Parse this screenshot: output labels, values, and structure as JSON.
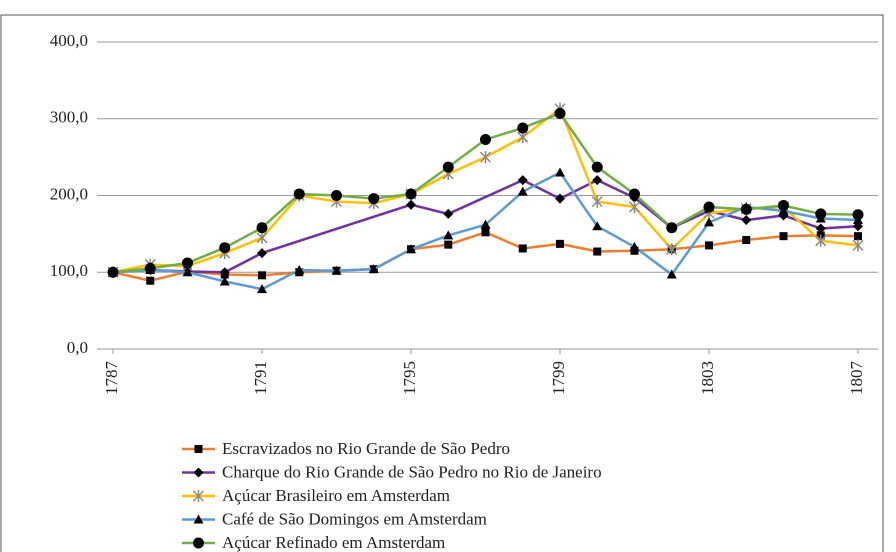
{
  "chart_data": {
    "type": "line",
    "xlim": [
      1787,
      1807
    ],
    "xticks": [
      1787,
      1791,
      1795,
      1799,
      1803,
      1807
    ],
    "ylim": [
      0,
      400
    ],
    "yticks": [
      {
        "value": 0,
        "label": "0,0"
      },
      {
        "value": 100,
        "label": "100,0"
      },
      {
        "value": 200,
        "label": "200,0"
      },
      {
        "value": 300,
        "label": "300,0"
      },
      {
        "value": 400,
        "label": "400,0"
      }
    ],
    "grid": true,
    "legend": "bottom",
    "series": [
      {
        "name": "Escravizados no Rio Grande de São Pedro",
        "color": "#ed7d31",
        "marker": "square",
        "x": [
          1787,
          1788,
          1789,
          1790,
          1791,
          1792,
          1793,
          1794,
          1795,
          1796,
          1797,
          1798,
          1799,
          1800,
          1801,
          1802,
          1803,
          1804,
          1805,
          1806,
          1807
        ],
        "values": [
          100,
          89,
          101,
          97,
          96,
          100,
          102,
          104,
          130,
          136,
          152,
          131,
          137,
          127,
          128,
          130,
          135,
          142,
          147,
          148,
          147
        ]
      },
      {
        "name": "Charque do Rio Grande de São Pedro no Rio de Janeiro",
        "color": "#7030a0",
        "marker": "diamond",
        "x": [
          1787,
          1788,
          1789,
          1790,
          1791,
          1795,
          1796,
          1798,
          1799,
          1800,
          1801,
          1802,
          1803,
          1804,
          1805,
          1806,
          1807
        ],
        "values": [
          100,
          103,
          101,
          100,
          125,
          188,
          176,
          220,
          196,
          220,
          197,
          158,
          180,
          168,
          174,
          157,
          160
        ]
      },
      {
        "name": "Açúcar Brasileiro em Amsterdam",
        "color": "#ffc000",
        "marker": "star",
        "x": [
          1787,
          1788,
          1789,
          1790,
          1791,
          1792,
          1793,
          1794,
          1795,
          1796,
          1797,
          1798,
          1799,
          1800,
          1801,
          1802,
          1803,
          1804,
          1805,
          1806,
          1807
        ],
        "values": [
          100,
          110,
          108,
          125,
          145,
          200,
          192,
          190,
          202,
          228,
          250,
          276,
          313,
          192,
          185,
          130,
          177,
          183,
          185,
          141,
          135
        ]
      },
      {
        "name": "Café de São Domingos em Amsterdam",
        "color": "#5b9bd5",
        "marker": "triangle",
        "x": [
          1787,
          1788,
          1789,
          1790,
          1791,
          1792,
          1793,
          1794,
          1795,
          1796,
          1797,
          1798,
          1799,
          1800,
          1801,
          1802,
          1803,
          1804,
          1805,
          1806,
          1807
        ],
        "values": [
          100,
          103,
          100,
          88,
          78,
          103,
          102,
          104,
          130,
          148,
          162,
          205,
          230,
          160,
          133,
          97,
          165,
          185,
          180,
          170,
          168
        ]
      },
      {
        "name": "Açúcar Refinado em Amsterdam",
        "color": "#70ad47",
        "marker": "circle",
        "x": [
          1787,
          1788,
          1789,
          1790,
          1791,
          1792,
          1793,
          1794,
          1795,
          1796,
          1797,
          1798,
          1799,
          1800,
          1801,
          1802,
          1803,
          1804,
          1805,
          1806,
          1807
        ],
        "values": [
          100,
          105,
          112,
          132,
          158,
          202,
          200,
          196,
          202,
          237,
          273,
          288,
          307,
          237,
          202,
          158,
          185,
          182,
          187,
          176,
          175
        ]
      }
    ]
  }
}
